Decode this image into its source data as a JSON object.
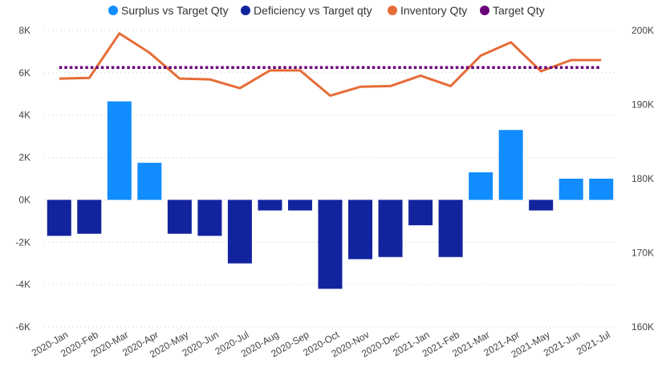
{
  "chart_data": {
    "type": "bar",
    "categories": [
      "2020-Jan",
      "2020-Feb",
      "2020-Mar",
      "2020-Apr",
      "2020-May",
      "2020-Jun",
      "2020-Jul",
      "2020-Aug",
      "2020-Sep",
      "2020-Oct",
      "2020-Nov",
      "2020-Dec",
      "2021-Jan",
      "2021-Feb",
      "2021-Mar",
      "2021-Apr",
      "2021-May",
      "2021-Jun",
      "2021-Jul"
    ],
    "left_ticks": [
      "8K",
      "6K",
      "4K",
      "2K",
      "0K",
      "-2K",
      "-4K",
      "-6K"
    ],
    "right_ticks": [
      "200K",
      "190K",
      "180K",
      "170K",
      "160K"
    ],
    "ylim_left": [
      -6000,
      8000
    ],
    "ylim_right": [
      160000,
      200000
    ],
    "grid": true,
    "legend_position": "top",
    "series": [
      {
        "name": "Surplus vs Target Qty",
        "type": "bar",
        "axis": "left",
        "color": "#118DFF",
        "values": [
          null,
          null,
          4650,
          1750,
          null,
          null,
          null,
          null,
          null,
          null,
          null,
          null,
          null,
          null,
          1300,
          3300,
          null,
          1000,
          1000
        ]
      },
      {
        "name": "Deficiency vs Target qty",
        "type": "bar",
        "axis": "left",
        "color": "#12239E",
        "values": [
          -1700,
          -1600,
          null,
          null,
          -1600,
          -1700,
          -3000,
          -500,
          -500,
          -4200,
          -2800,
          -2700,
          -1200,
          -2700,
          null,
          null,
          -500,
          null,
          null
        ]
      },
      {
        "name": "Inventory Qty",
        "type": "line",
        "axis": "right",
        "color": "#E66C37",
        "values": [
          193500,
          193600,
          199600,
          197000,
          193500,
          193400,
          192200,
          194600,
          194600,
          191200,
          192400,
          192500,
          193900,
          192500,
          196600,
          198400,
          194500,
          196000,
          196000
        ]
      },
      {
        "name": "Target Qty",
        "type": "line",
        "axis": "right",
        "color": "#6B007B",
        "style": "dotted",
        "values": [
          195000,
          195000,
          195000,
          195000,
          195000,
          195000,
          195000,
          195000,
          195000,
          195000,
          195000,
          195000,
          195000,
          195000,
          195000,
          195000,
          195000,
          195000,
          195000
        ]
      }
    ]
  }
}
